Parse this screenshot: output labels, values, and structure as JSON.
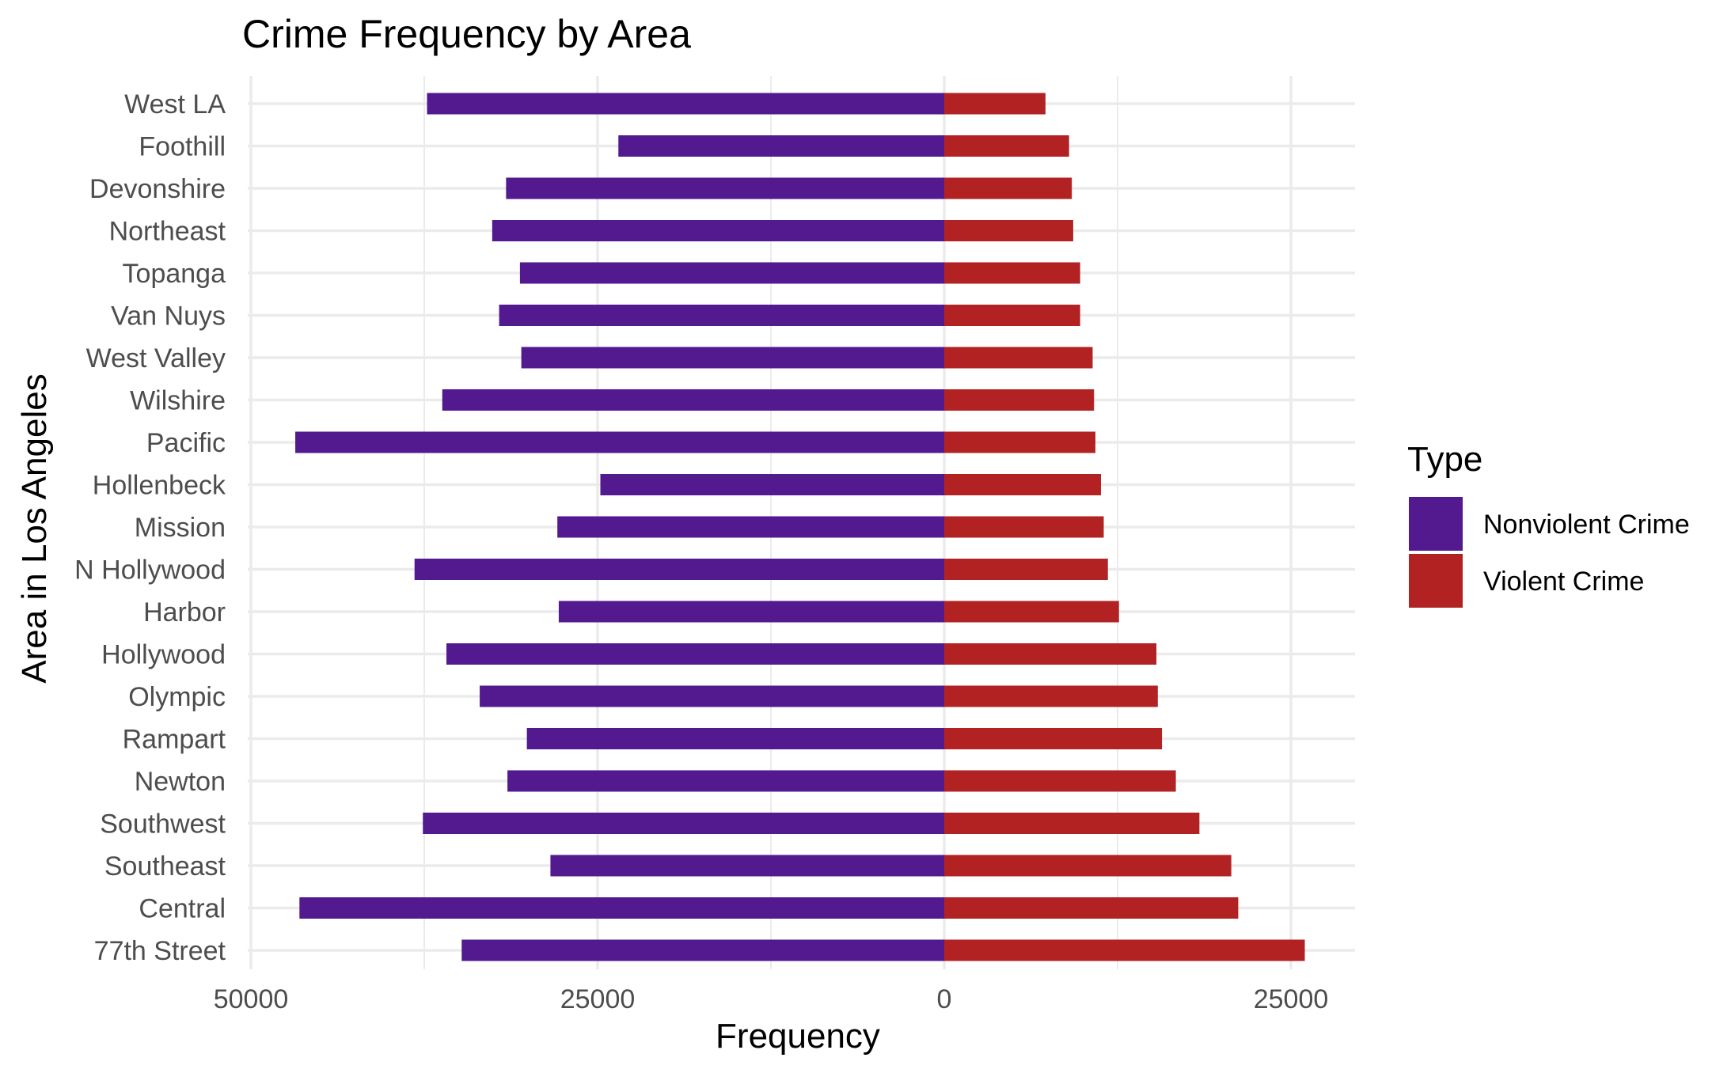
{
  "chart_data": {
    "type": "bar",
    "orientation": "horizontal-diverging",
    "title": "Crime Frequency by Area",
    "xlabel": "Frequency",
    "ylabel": "Area in Los Angeles",
    "xlim": [
      -50000,
      25000
    ],
    "x_ticks": [
      -50000,
      -25000,
      0,
      25000
    ],
    "x_tick_labels": [
      "50000",
      "25000",
      "0",
      "25000"
    ],
    "grid": true,
    "legend": {
      "title": "Type",
      "placement": "right",
      "entries": [
        {
          "name": "Nonviolent Crime",
          "color": "#53198f"
        },
        {
          "name": "Violent Crime",
          "color": "#b22222"
        }
      ]
    },
    "categories": [
      "West LA",
      "Foothill",
      "Devonshire",
      "Northeast",
      "Topanga",
      "Van Nuys",
      "West Valley",
      "Wilshire",
      "Pacific",
      "Hollenbeck",
      "Mission",
      "N Hollywood",
      "Harbor",
      "Hollywood",
      "Olympic",
      "Rampart",
      "Newton",
      "Southwest",
      "Southeast",
      "Central",
      "77th Street"
    ],
    "series": [
      {
        "name": "Nonviolent Crime",
        "color": "#53198f",
        "values": [
          37300,
          23500,
          31600,
          32600,
          30600,
          32100,
          30500,
          36200,
          46800,
          24800,
          27900,
          38200,
          27800,
          35900,
          33500,
          30100,
          31500,
          37600,
          28400,
          46500,
          34800
        ]
      },
      {
        "name": "Violent Crime",
        "color": "#b22222",
        "values": [
          7300,
          9000,
          9200,
          9300,
          9800,
          9800,
          10700,
          10800,
          10900,
          11300,
          11500,
          11800,
          12600,
          15300,
          15400,
          15700,
          16700,
          18400,
          20700,
          21200,
          26000
        ]
      }
    ]
  }
}
